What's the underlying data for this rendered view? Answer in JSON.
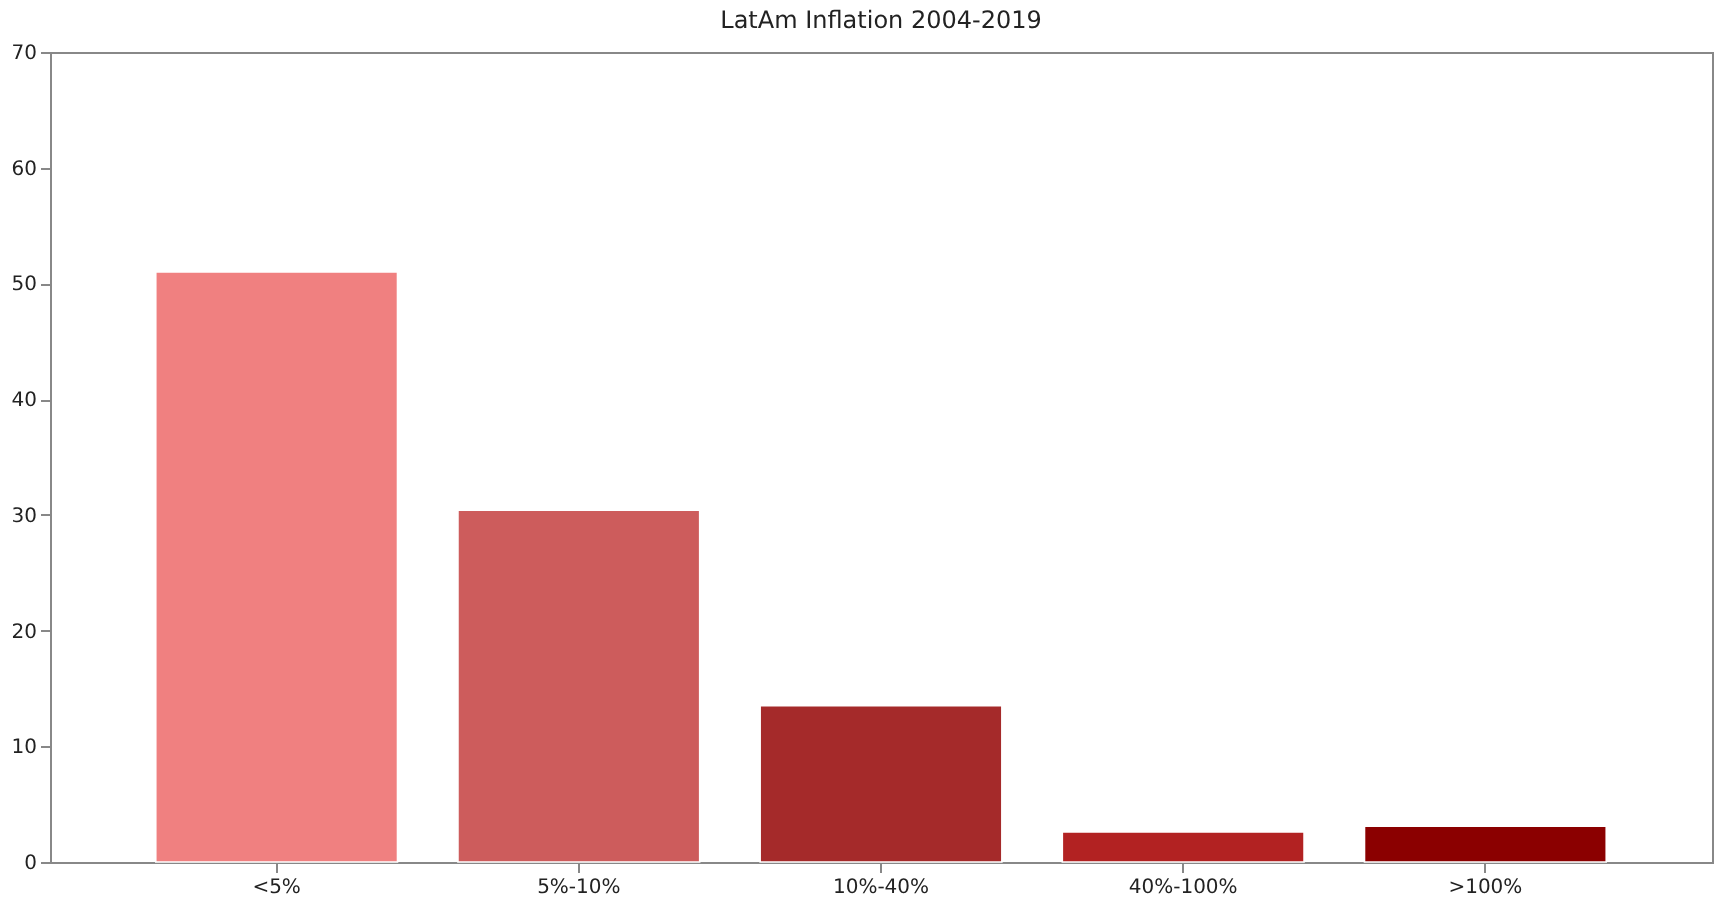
{
  "chart_data": {
    "type": "bar",
    "title": "LatAm Inflation 2004-2019",
    "categories": [
      "<5%",
      "5%-10%",
      "10%-40%",
      "40%-100%",
      ">100%"
    ],
    "values": [
      51.0,
      30.4,
      13.5,
      2.6,
      3.1
    ],
    "colors": [
      "#f08080",
      "#cd5c5c",
      "#a52a2a",
      "#b22222",
      "#8b0000"
    ],
    "ylim": [
      0,
      70
    ],
    "yticks": [
      0,
      10,
      20,
      30,
      40,
      50,
      60,
      70
    ],
    "grid": false,
    "legend": false
  }
}
